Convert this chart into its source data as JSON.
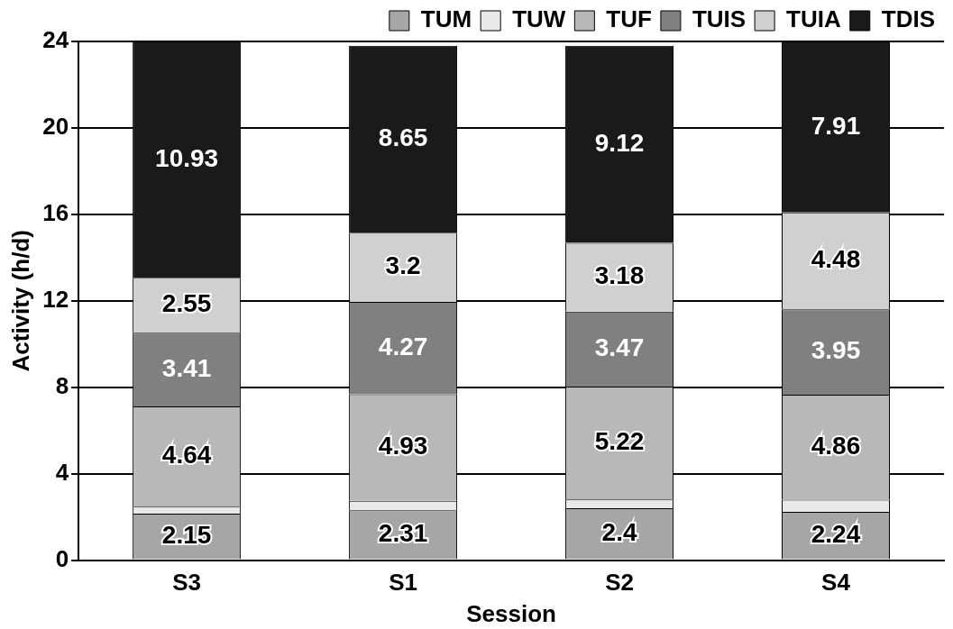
{
  "chart_data": {
    "type": "bar",
    "stacked": true,
    "xlabel": "Session",
    "ylabel": "Activity (h/d)",
    "categories": [
      "S3",
      "S1",
      "S2",
      "S4"
    ],
    "series": [
      {
        "name": "TUM",
        "color": "#a6a6a6",
        "values": [
          2.15,
          2.31,
          2.4,
          2.24
        ],
        "value_labels": [
          "2.15",
          "2.31",
          "2.4",
          "2.24"
        ]
      },
      {
        "name": "TUW",
        "color": "#e9e9e9",
        "values": [
          0.32,
          0.44,
          0.41,
          0.56
        ]
      },
      {
        "name": "TUF",
        "color": "#b8b8b8",
        "values": [
          4.64,
          4.93,
          5.22,
          4.86
        ],
        "value_labels": [
          "4.64",
          "4.93",
          "5.22",
          "4.86"
        ]
      },
      {
        "name": "TUIS",
        "color": "#808080",
        "values": [
          3.41,
          4.27,
          3.47,
          3.95
        ],
        "value_labels": [
          "3.41",
          "4.27",
          "3.47",
          "3.95"
        ]
      },
      {
        "name": "TUIA",
        "color": "#d0d0d0",
        "values": [
          2.55,
          3.2,
          3.18,
          4.48
        ],
        "value_labels": [
          "2.55",
          "3.2",
          "3.18",
          "4.48"
        ]
      },
      {
        "name": "TDIS",
        "color": "#1a1a1a",
        "values": [
          10.93,
          8.65,
          9.12,
          7.91
        ],
        "value_labels": [
          "10.93",
          "8.65",
          "9.12",
          "7.91"
        ]
      }
    ],
    "ylim": [
      0,
      24
    ],
    "yticks": [
      0,
      4,
      8,
      12,
      16,
      20,
      24
    ],
    "grid": "y",
    "legend": "top"
  }
}
